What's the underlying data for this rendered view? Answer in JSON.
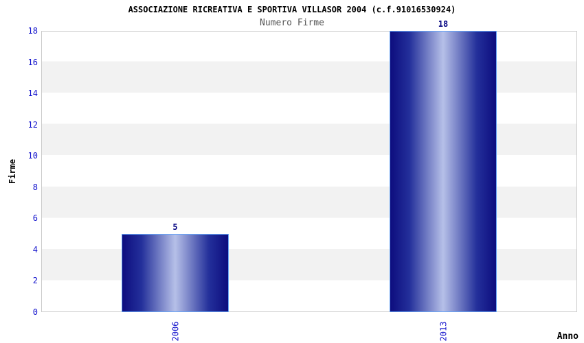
{
  "header": {
    "title": "ASSOCIAZIONE RICREATIVA E SPORTIVA VILLASOR 2004 (c.f.91016530924)",
    "subtitle": "Numero Firme"
  },
  "chart_data": {
    "type": "bar",
    "title": "ASSOCIAZIONE RICREATIVA E SPORTIVA VILLASOR 2004 (c.f.91016530924)",
    "subtitle": "Numero Firme",
    "categories": [
      "2006",
      "2013"
    ],
    "values": [
      5,
      18
    ],
    "value_labels": [
      "5",
      "18"
    ],
    "xlabel": "Anno",
    "ylabel": "Firme",
    "ylim": [
      0,
      18
    ],
    "yticks": [
      0,
      2,
      4,
      6,
      8,
      10,
      12,
      14,
      16,
      18
    ],
    "grid": "horizontal-bands-alternating",
    "legend": "none",
    "colors": {
      "bar_edge": "#0d0d7e",
      "bar_center": "#b6c0e8",
      "bar_border": "#66a3f5",
      "axis_tick_label": "#1111cc",
      "value_label": "#000080",
      "band_light": "#ffffff",
      "band_dark": "#f2f2f2",
      "plot_border": "#cccccc",
      "title_color": "#000000",
      "subtitle_color": "#555555",
      "background": "#ffffff"
    }
  }
}
